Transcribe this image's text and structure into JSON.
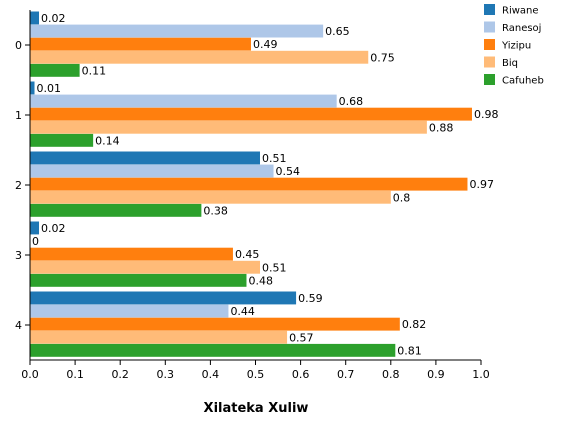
{
  "chart_data": {
    "type": "bar",
    "orientation": "horizontal",
    "xlabel": "Xilateka Xuliw",
    "ylabel": "",
    "xlim": [
      0,
      1.0
    ],
    "x_ticks": [
      "0.0",
      "0.1",
      "0.2",
      "0.3",
      "0.4",
      "0.5",
      "0.6",
      "0.7",
      "0.8",
      "0.9",
      "1.0"
    ],
    "categories": [
      "0",
      "1",
      "2",
      "3",
      "4"
    ],
    "grid": false,
    "legend_position": "top-right",
    "series": [
      {
        "name": "Riwane",
        "color": "#1f77b4",
        "values": [
          0.02,
          0.01,
          0.51,
          0.02,
          0.59
        ],
        "labels": [
          "0.02",
          "0.01",
          "0.51",
          "0.02",
          "0.59"
        ]
      },
      {
        "name": "Ranesoj",
        "color": "#aec7e8",
        "values": [
          0.65,
          0.68,
          0.54,
          0.0,
          0.44
        ],
        "labels": [
          "0.65",
          "0.68",
          "0.54",
          "0",
          "0.44"
        ]
      },
      {
        "name": "Yizipu",
        "color": "#ff7f0e",
        "values": [
          0.49,
          0.98,
          0.97,
          0.45,
          0.82
        ],
        "labels": [
          "0.49",
          "0.98",
          "0.97",
          "0.45",
          "0.82"
        ]
      },
      {
        "name": "Biq",
        "color": "#ffbb78",
        "values": [
          0.75,
          0.88,
          0.8,
          0.51,
          0.57
        ],
        "labels": [
          "0.75",
          "0.88",
          "0.8",
          "0.51",
          "0.57"
        ]
      },
      {
        "name": "Cafuheb",
        "color": "#2ca02c",
        "values": [
          0.11,
          0.14,
          0.38,
          0.48,
          0.81
        ],
        "labels": [
          "0.11",
          "0.14",
          "0.38",
          "0.48",
          "0.81"
        ]
      }
    ]
  }
}
